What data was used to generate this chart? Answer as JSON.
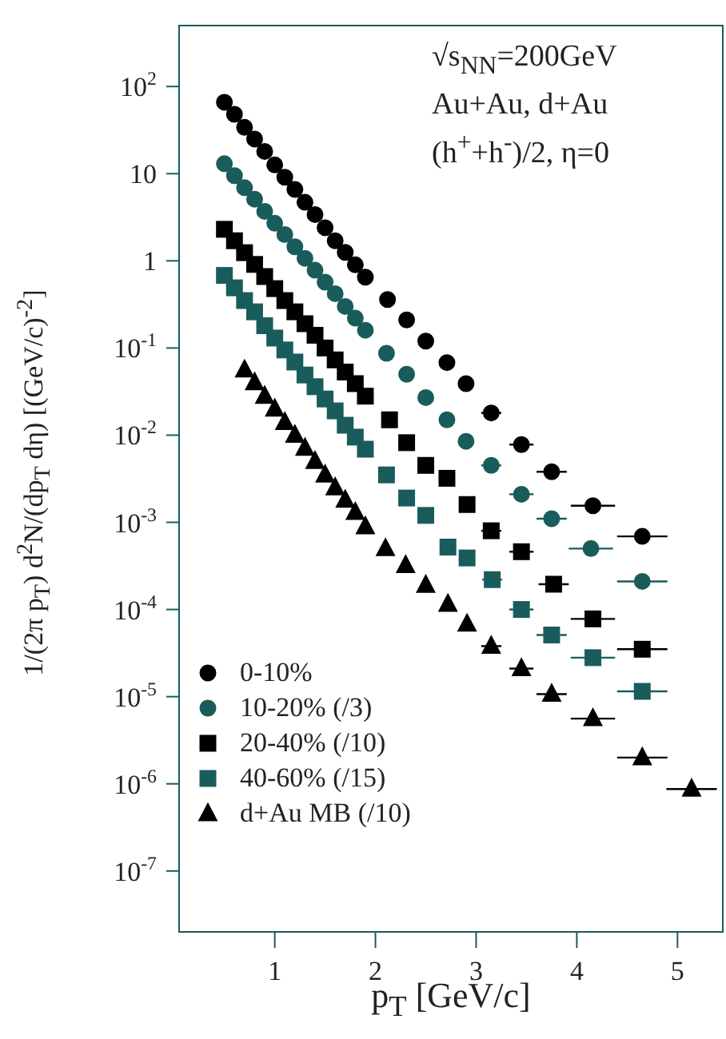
{
  "chart_data": {
    "type": "scatter",
    "xlabel": "p$_{T}$ [GeV/c]",
    "ylabel": "1/(2π p$_{T}$) d$^{2}$N/(dp$_{T}$ dη) [(GeV/c)$^{-2}$]",
    "annotations": [
      "√s$_{NN}$=200GeV",
      "Au+Au, d+Au",
      "(h$^{+}$+h$^{-}$)/2, η=0"
    ],
    "log": "y",
    "xlim": [
      0.05,
      5.45
    ],
    "xticks": [
      1,
      2,
      3,
      4,
      5
    ],
    "ylim": [
      2e-08,
      500
    ],
    "yticks": [
      {
        "value": 1e-07,
        "label": "10$^{-7}$"
      },
      {
        "value": 1e-06,
        "label": "10$^{-6}$"
      },
      {
        "value": 1e-05,
        "label": "10$^{-5}$"
      },
      {
        "value": 0.0001,
        "label": "10$^{-4}$"
      },
      {
        "value": 0.001,
        "label": "10$^{-3}$"
      },
      {
        "value": 0.01,
        "label": "10$^{-2}$"
      },
      {
        "value": 0.1,
        "label": "10$^{-1}$"
      },
      1,
      10,
      {
        "value": 100,
        "label": "10$^{2}$"
      }
    ],
    "legend": "bottom left",
    "series": [
      {
        "name": "0-10%",
        "color": "#000000",
        "marker": "circle",
        "x": [
          0.5,
          0.6,
          0.7,
          0.8,
          0.9,
          1.0,
          1.1,
          1.2,
          1.3,
          1.4,
          1.5,
          1.6,
          1.7,
          1.8,
          1.9,
          2.12,
          2.31,
          2.5,
          2.71,
          2.9,
          3.15,
          3.45,
          3.75,
          4.16,
          4.65
        ],
        "values": [
          66,
          48,
          34,
          25,
          18,
          12.6,
          9.1,
          6.6,
          4.7,
          3.4,
          2.4,
          1.7,
          1.25,
          0.9,
          0.65,
          0.36,
          0.21,
          0.12,
          0.068,
          0.039,
          0.018,
          0.0078,
          0.0038,
          0.00155,
          0.00069
        ],
        "xerrors": [
          null,
          null,
          null,
          null,
          null,
          null,
          null,
          null,
          null,
          null,
          null,
          null,
          null,
          null,
          null,
          null,
          null,
          null,
          null,
          0.05,
          0.1,
          0.12,
          0.15,
          0.22,
          0.25
        ]
      },
      {
        "name": "10-20% (/3)",
        "color": "#1a5c5c",
        "marker": "circle",
        "x": [
          0.5,
          0.6,
          0.7,
          0.8,
          0.9,
          1.0,
          1.1,
          1.2,
          1.3,
          1.4,
          1.5,
          1.6,
          1.7,
          1.8,
          1.9,
          2.11,
          2.31,
          2.5,
          2.71,
          2.9,
          3.15,
          3.45,
          3.75,
          4.14,
          4.65
        ],
        "values": [
          13,
          9.5,
          6.9,
          5.1,
          3.7,
          2.7,
          2.0,
          1.45,
          1.07,
          0.78,
          0.57,
          0.42,
          0.3,
          0.22,
          0.16,
          0.087,
          0.05,
          0.027,
          0.015,
          0.0085,
          0.0045,
          0.0021,
          0.0011,
          0.0005,
          0.00021
        ],
        "xerrors": [
          null,
          null,
          null,
          null,
          null,
          null,
          null,
          null,
          null,
          null,
          null,
          null,
          null,
          null,
          null,
          null,
          null,
          null,
          null,
          0.05,
          0.1,
          0.12,
          0.15,
          0.22,
          0.25
        ]
      },
      {
        "name": "20-40% (/10)",
        "color": "#000000",
        "marker": "square",
        "x": [
          0.5,
          0.6,
          0.7,
          0.8,
          0.9,
          1.0,
          1.1,
          1.2,
          1.3,
          1.4,
          1.5,
          1.6,
          1.7,
          1.8,
          1.9,
          2.14,
          2.31,
          2.5,
          2.71,
          2.91,
          3.15,
          3.45,
          3.77,
          4.16,
          4.65
        ],
        "values": [
          2.3,
          1.7,
          1.24,
          0.91,
          0.66,
          0.48,
          0.35,
          0.26,
          0.19,
          0.14,
          0.1,
          0.073,
          0.053,
          0.039,
          0.028,
          0.015,
          0.0082,
          0.0045,
          0.0032,
          0.0016,
          0.0008,
          0.00046,
          0.000195,
          7.8e-05,
          3.5e-05
        ],
        "xerrors": [
          null,
          null,
          null,
          null,
          null,
          null,
          null,
          null,
          null,
          null,
          null,
          null,
          null,
          null,
          null,
          null,
          null,
          null,
          null,
          0.05,
          0.1,
          0.12,
          0.15,
          0.22,
          0.25
        ]
      },
      {
        "name": "40-60% (/15)",
        "color": "#1a5c5c",
        "marker": "square",
        "x": [
          0.5,
          0.6,
          0.7,
          0.8,
          0.9,
          1.0,
          1.1,
          1.2,
          1.3,
          1.4,
          1.5,
          1.6,
          1.7,
          1.8,
          1.9,
          2.11,
          2.31,
          2.5,
          2.72,
          2.91,
          3.16,
          3.45,
          3.75,
          4.16,
          4.65
        ],
        "values": [
          0.68,
          0.49,
          0.35,
          0.26,
          0.18,
          0.13,
          0.095,
          0.069,
          0.049,
          0.036,
          0.026,
          0.019,
          0.013,
          0.0095,
          0.0069,
          0.0035,
          0.0019,
          0.0012,
          0.00052,
          0.00039,
          0.00022,
          0.0001,
          5.1e-05,
          2.8e-05,
          1.15e-05
        ],
        "xerrors": [
          null,
          null,
          null,
          null,
          null,
          null,
          null,
          null,
          null,
          null,
          null,
          null,
          null,
          null,
          null,
          null,
          null,
          null,
          null,
          0.05,
          0.1,
          0.12,
          0.15,
          0.22,
          0.25
        ]
      },
      {
        "name": "d+Au MB (/10)",
        "color": "#000000",
        "marker": "triangle",
        "x": [
          0.7,
          0.8,
          0.9,
          1.0,
          1.1,
          1.2,
          1.3,
          1.4,
          1.5,
          1.6,
          1.7,
          1.8,
          1.9,
          2.1,
          2.3,
          2.5,
          2.72,
          2.91,
          3.15,
          3.45,
          3.75,
          4.16,
          4.65,
          5.14
        ],
        "values": [
          0.056,
          0.04,
          0.028,
          0.02,
          0.014,
          0.01,
          0.0071,
          0.005,
          0.0035,
          0.0025,
          0.0018,
          0.0013,
          0.00089,
          0.0005,
          0.00032,
          0.00019,
          0.000115,
          6.8e-05,
          3.8e-05,
          2.1e-05,
          1.07e-05,
          5.6e-06,
          2e-06,
          8.7e-07
        ],
        "xerrors": [
          null,
          null,
          null,
          null,
          null,
          null,
          null,
          null,
          null,
          null,
          null,
          null,
          null,
          null,
          null,
          null,
          null,
          null,
          0.1,
          0.12,
          0.15,
          0.22,
          0.25,
          0.25
        ]
      }
    ]
  }
}
